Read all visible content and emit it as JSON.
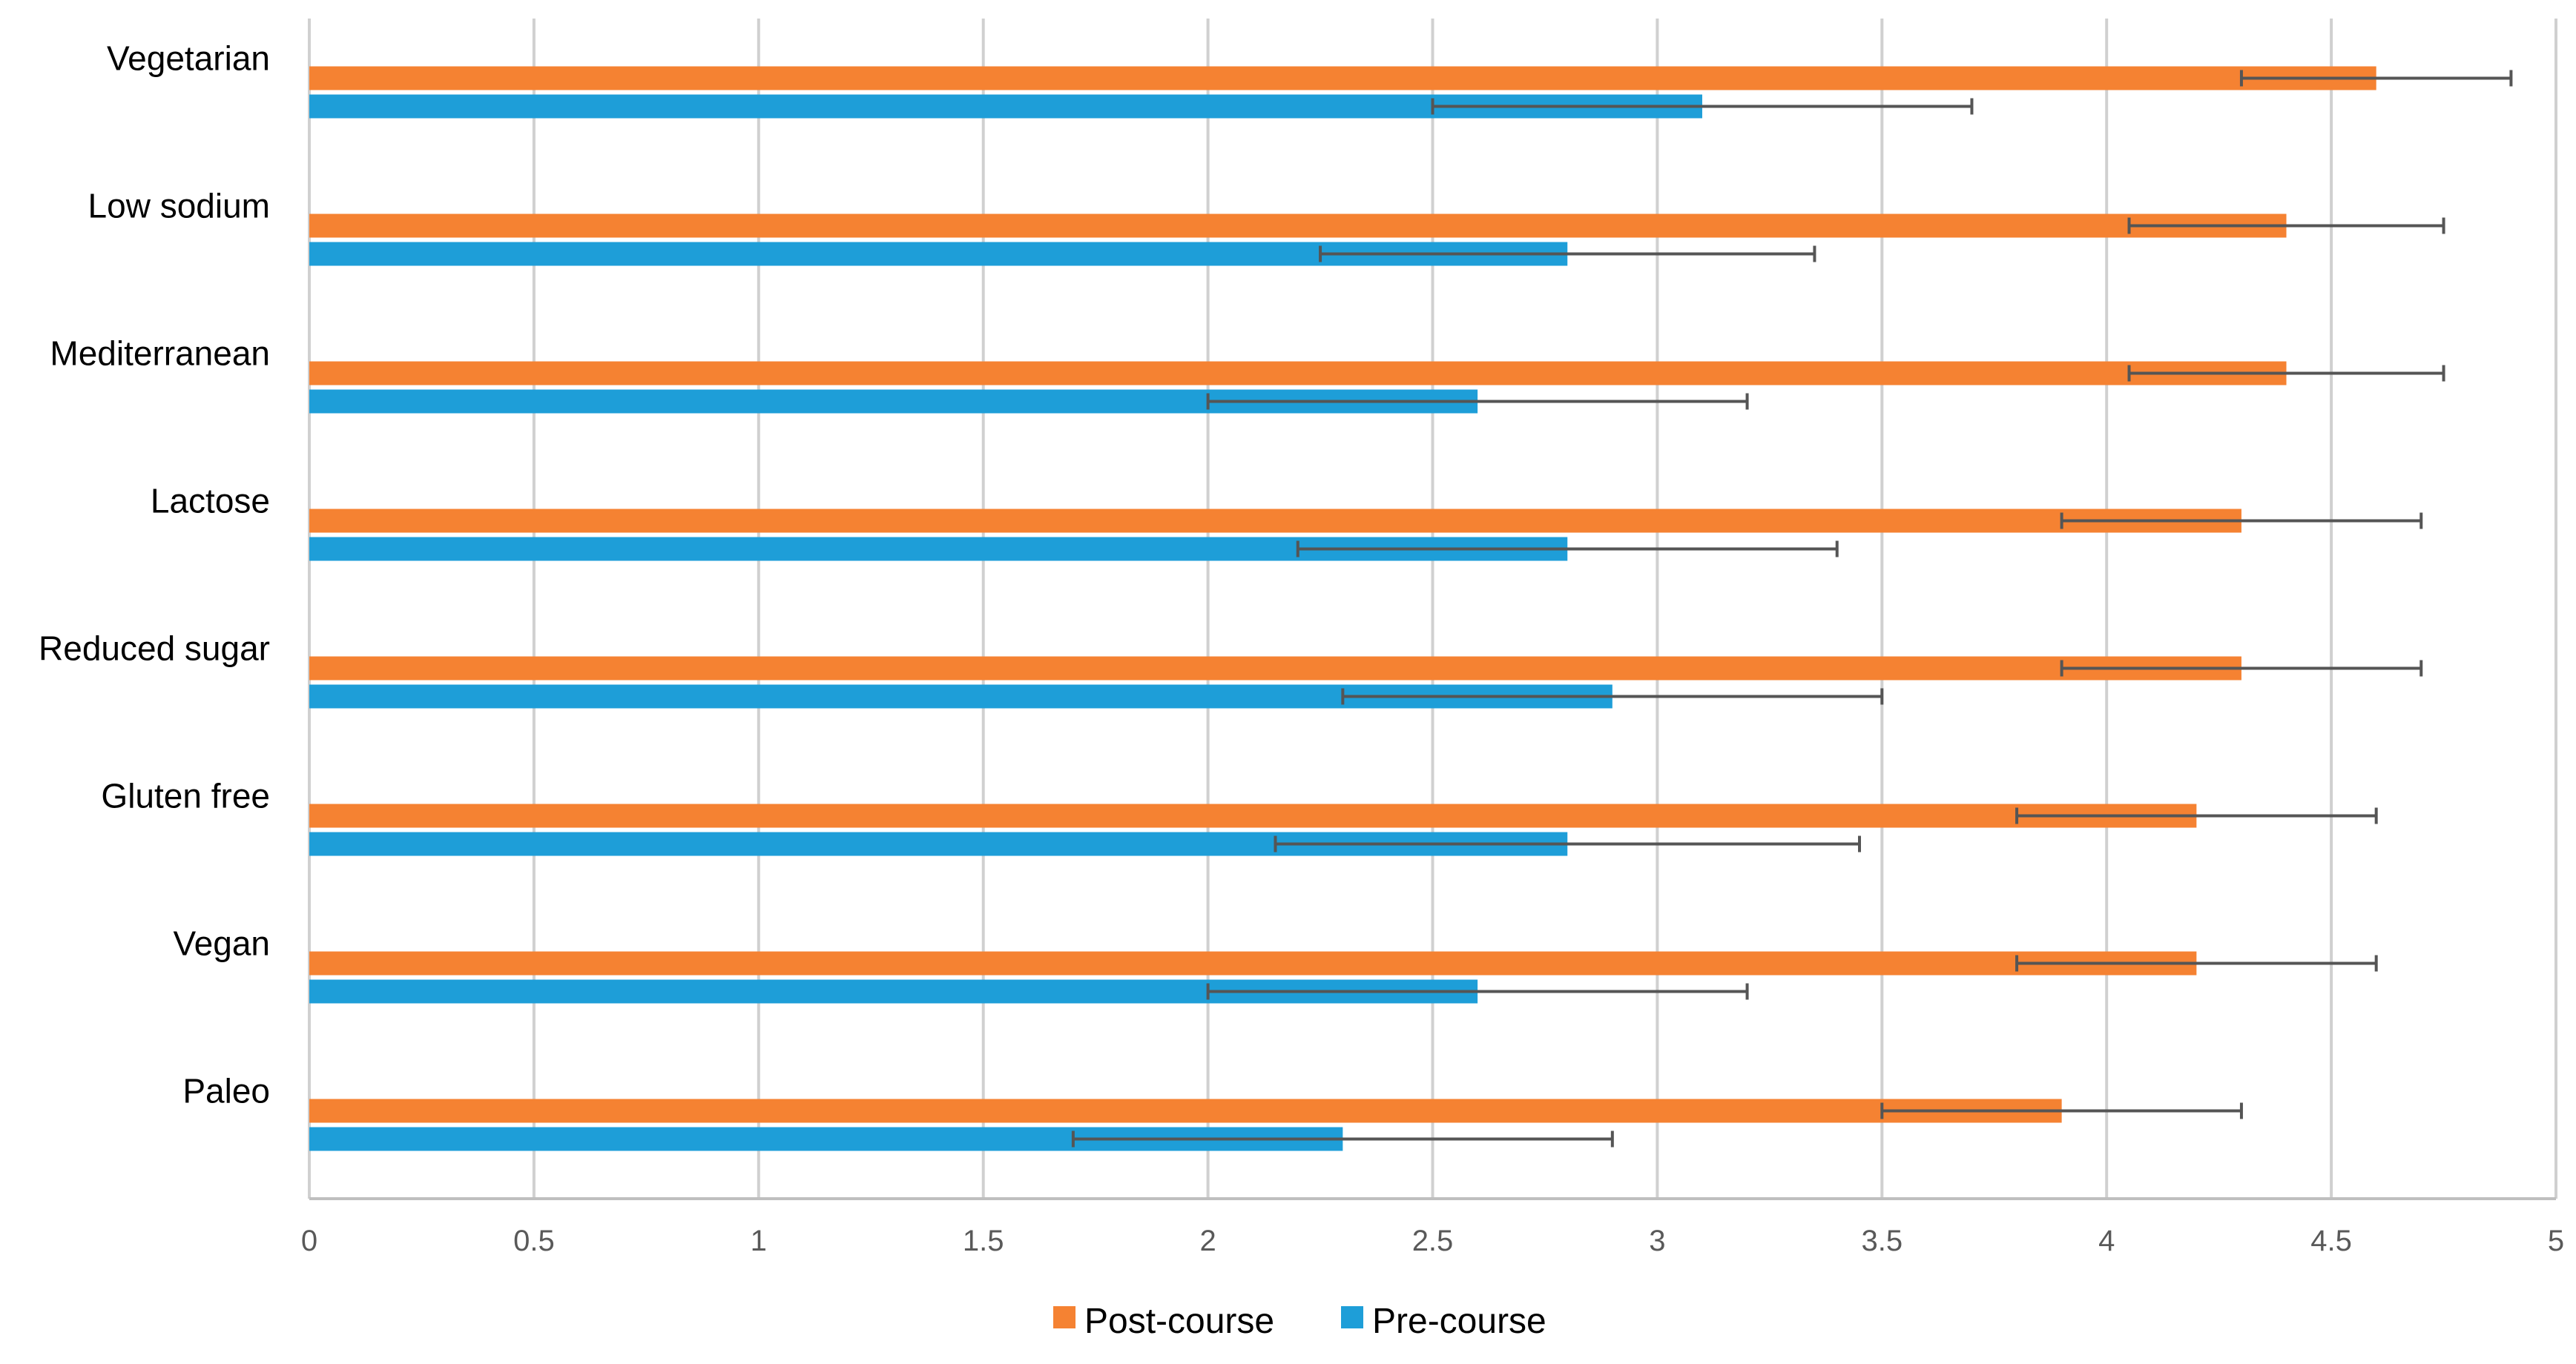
{
  "chart_data": {
    "type": "bar",
    "orientation": "horizontal",
    "title": "",
    "xlabel": "",
    "ylabel": "",
    "xlim": [
      0,
      5
    ],
    "x_ticks": [
      "0",
      "0.5",
      "1",
      "1.5",
      "2",
      "2.5",
      "3",
      "3.5",
      "4",
      "4.5",
      "5"
    ],
    "grid": true,
    "legend_position": "bottom",
    "categories": [
      "Vegetarian",
      "Low sodium",
      "Mediterranean",
      "Lactose",
      "Reduced sugar",
      "Gluten free",
      "Vegan",
      "Paleo"
    ],
    "series": [
      {
        "name": "Post-course",
        "color": "#F58232",
        "values": [
          4.6,
          4.4,
          4.4,
          4.3,
          4.3,
          4.2,
          4.2,
          3.9
        ],
        "error": [
          0.3,
          0.35,
          0.35,
          0.4,
          0.4,
          0.4,
          0.4,
          0.4
        ]
      },
      {
        "name": "Pre-course",
        "color": "#1E9ED8",
        "values": [
          3.1,
          2.8,
          2.6,
          2.8,
          2.9,
          2.8,
          2.6,
          2.3
        ],
        "error": [
          0.6,
          0.55,
          0.6,
          0.6,
          0.6,
          0.65,
          0.6,
          0.6
        ]
      }
    ]
  }
}
